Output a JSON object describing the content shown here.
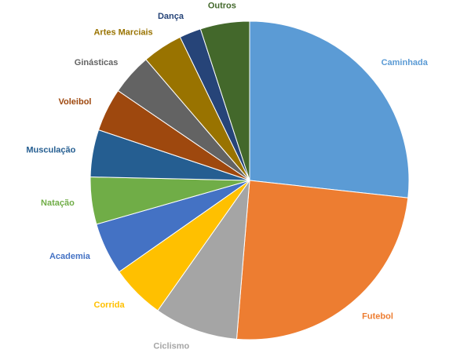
{
  "chart_data": {
    "type": "pie",
    "categories": [
      "Caminhada",
      "Futebol",
      "Ciclismo",
      "Corrida",
      "Academia",
      "Natação",
      "Musculação",
      "Voleibol",
      "Ginásticas",
      "Artes Marciais",
      "Dança",
      "Outros"
    ],
    "values": [
      26.8,
      24.6,
      8.5,
      5.5,
      5.3,
      4.8,
      4.8,
      4.4,
      4.2,
      4.1,
      2.2,
      5.0
    ],
    "colors": [
      "#5b9bd5",
      "#ed7d31",
      "#a5a5a5",
      "#ffc000",
      "#4472c4",
      "#70ad47",
      "#255e91",
      "#9e480e",
      "#636363",
      "#997300",
      "#264478",
      "#43682b"
    ]
  }
}
